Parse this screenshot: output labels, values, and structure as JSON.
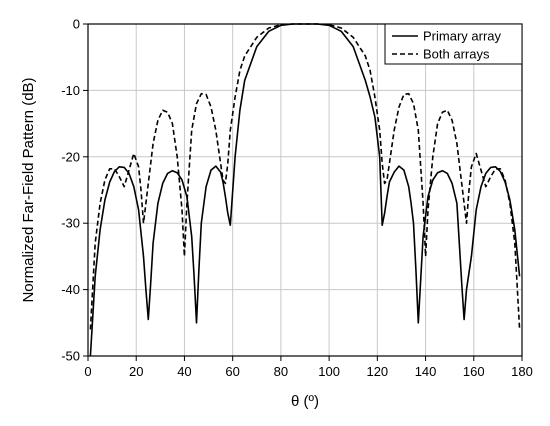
{
  "chart_data": {
    "type": "line",
    "xlabel": "θ (º)",
    "ylabel": "Normalized Far-Field Pattern (dB)",
    "xlim": [
      0,
      180
    ],
    "ylim": [
      -50,
      0
    ],
    "x_ticks": [
      0,
      20,
      40,
      60,
      80,
      100,
      120,
      140,
      160,
      180
    ],
    "y_ticks": [
      0,
      -10,
      -20,
      -30,
      -40,
      -50
    ],
    "grid": true,
    "legend": "top-right",
    "series": [
      {
        "name": "Primary array",
        "style": "solid",
        "color": "#000000",
        "x": [
          1,
          3,
          5,
          7,
          9,
          11,
          13,
          15,
          17,
          19,
          21,
          23,
          24,
          25,
          26,
          27,
          29,
          31,
          33,
          35,
          37,
          39,
          41,
          43,
          44,
          45,
          46,
          47,
          49,
          51,
          53,
          55,
          56,
          57,
          58,
          59,
          61,
          63,
          65,
          70,
          75,
          80,
          85,
          90,
          95,
          100,
          105,
          110,
          115,
          117,
          119,
          121,
          122,
          123,
          124,
          125,
          127,
          129,
          131,
          133,
          134,
          135,
          136,
          137,
          139,
          141,
          143,
          145,
          147,
          149,
          151,
          153,
          154,
          155,
          156,
          157,
          159,
          161,
          163,
          165,
          167,
          169,
          171,
          173,
          175,
          177,
          179
        ],
        "y": [
          -50,
          -38,
          -31,
          -26.5,
          -23.8,
          -22.2,
          -21.5,
          -21.6,
          -22.5,
          -24.5,
          -28,
          -35,
          -40,
          -44.5,
          -39,
          -33,
          -27,
          -24,
          -22.5,
          -22.1,
          -22.4,
          -23.5,
          -26,
          -32,
          -38,
          -45,
          -37,
          -30,
          -24.5,
          -22,
          -21.4,
          -22.3,
          -23.8,
          -26,
          -28.5,
          -30.3,
          -20,
          -13,
          -8.5,
          -3.4,
          -1.1,
          -0.2,
          0,
          0,
          0,
          -0.2,
          -1.1,
          -3.4,
          -8.5,
          -11,
          -14,
          -20,
          -30.3,
          -28.5,
          -26,
          -23.8,
          -22.3,
          -21.4,
          -22,
          -24.5,
          -27,
          -30,
          -37,
          -45,
          -32,
          -26,
          -23.5,
          -22.4,
          -22.1,
          -22.5,
          -24,
          -27,
          -33,
          -39,
          -44.5,
          -40,
          -35,
          -28,
          -24.5,
          -22.5,
          -21.6,
          -21.5,
          -22.2,
          -23.8,
          -26.5,
          -31,
          -38
        ]
      },
      {
        "name": "Both arrays",
        "style": "dashed",
        "color": "#000000",
        "x": [
          1,
          3,
          5,
          7,
          9,
          11,
          13,
          15,
          17,
          19,
          21,
          22,
          23,
          25,
          27,
          29,
          31,
          33,
          35,
          37,
          39,
          40,
          41,
          43,
          45,
          47,
          49,
          51,
          53,
          55,
          56,
          57,
          58,
          59,
          61,
          63,
          65,
          70,
          75,
          80,
          85,
          90,
          95,
          100,
          105,
          110,
          115,
          117,
          119,
          121,
          122,
          123,
          124,
          125,
          127,
          129,
          131,
          133,
          135,
          137,
          139,
          140,
          141,
          143,
          145,
          147,
          149,
          151,
          153,
          155,
          157,
          158,
          159,
          161,
          163,
          165,
          167,
          169,
          171,
          173,
          175,
          177,
          179
        ],
        "y": [
          -46,
          -33,
          -27,
          -23.5,
          -21.8,
          -21.8,
          -23,
          -24.5,
          -22,
          -19.5,
          -21.5,
          -25,
          -30,
          -24,
          -18,
          -14.5,
          -13,
          -13.3,
          -15,
          -20,
          -28,
          -35,
          -27,
          -16,
          -12,
          -10.5,
          -10.6,
          -12.5,
          -16,
          -21,
          -23.5,
          -24,
          -21,
          -16,
          -11,
          -7,
          -4.8,
          -2,
          -0.6,
          -0.1,
          0,
          0,
          0,
          -0.1,
          -0.6,
          -2,
          -4.8,
          -7,
          -11,
          -16,
          -21,
          -24,
          -23.5,
          -21,
          -16,
          -12.5,
          -10.6,
          -10.5,
          -12,
          -16,
          -27,
          -35,
          -28,
          -20,
          -15,
          -13.3,
          -13,
          -14.5,
          -18,
          -24,
          -30,
          -25,
          -21.5,
          -19.5,
          -22,
          -24.5,
          -23,
          -21.8,
          -21.8,
          -23.5,
          -27,
          -33,
          -46
        ]
      }
    ]
  }
}
